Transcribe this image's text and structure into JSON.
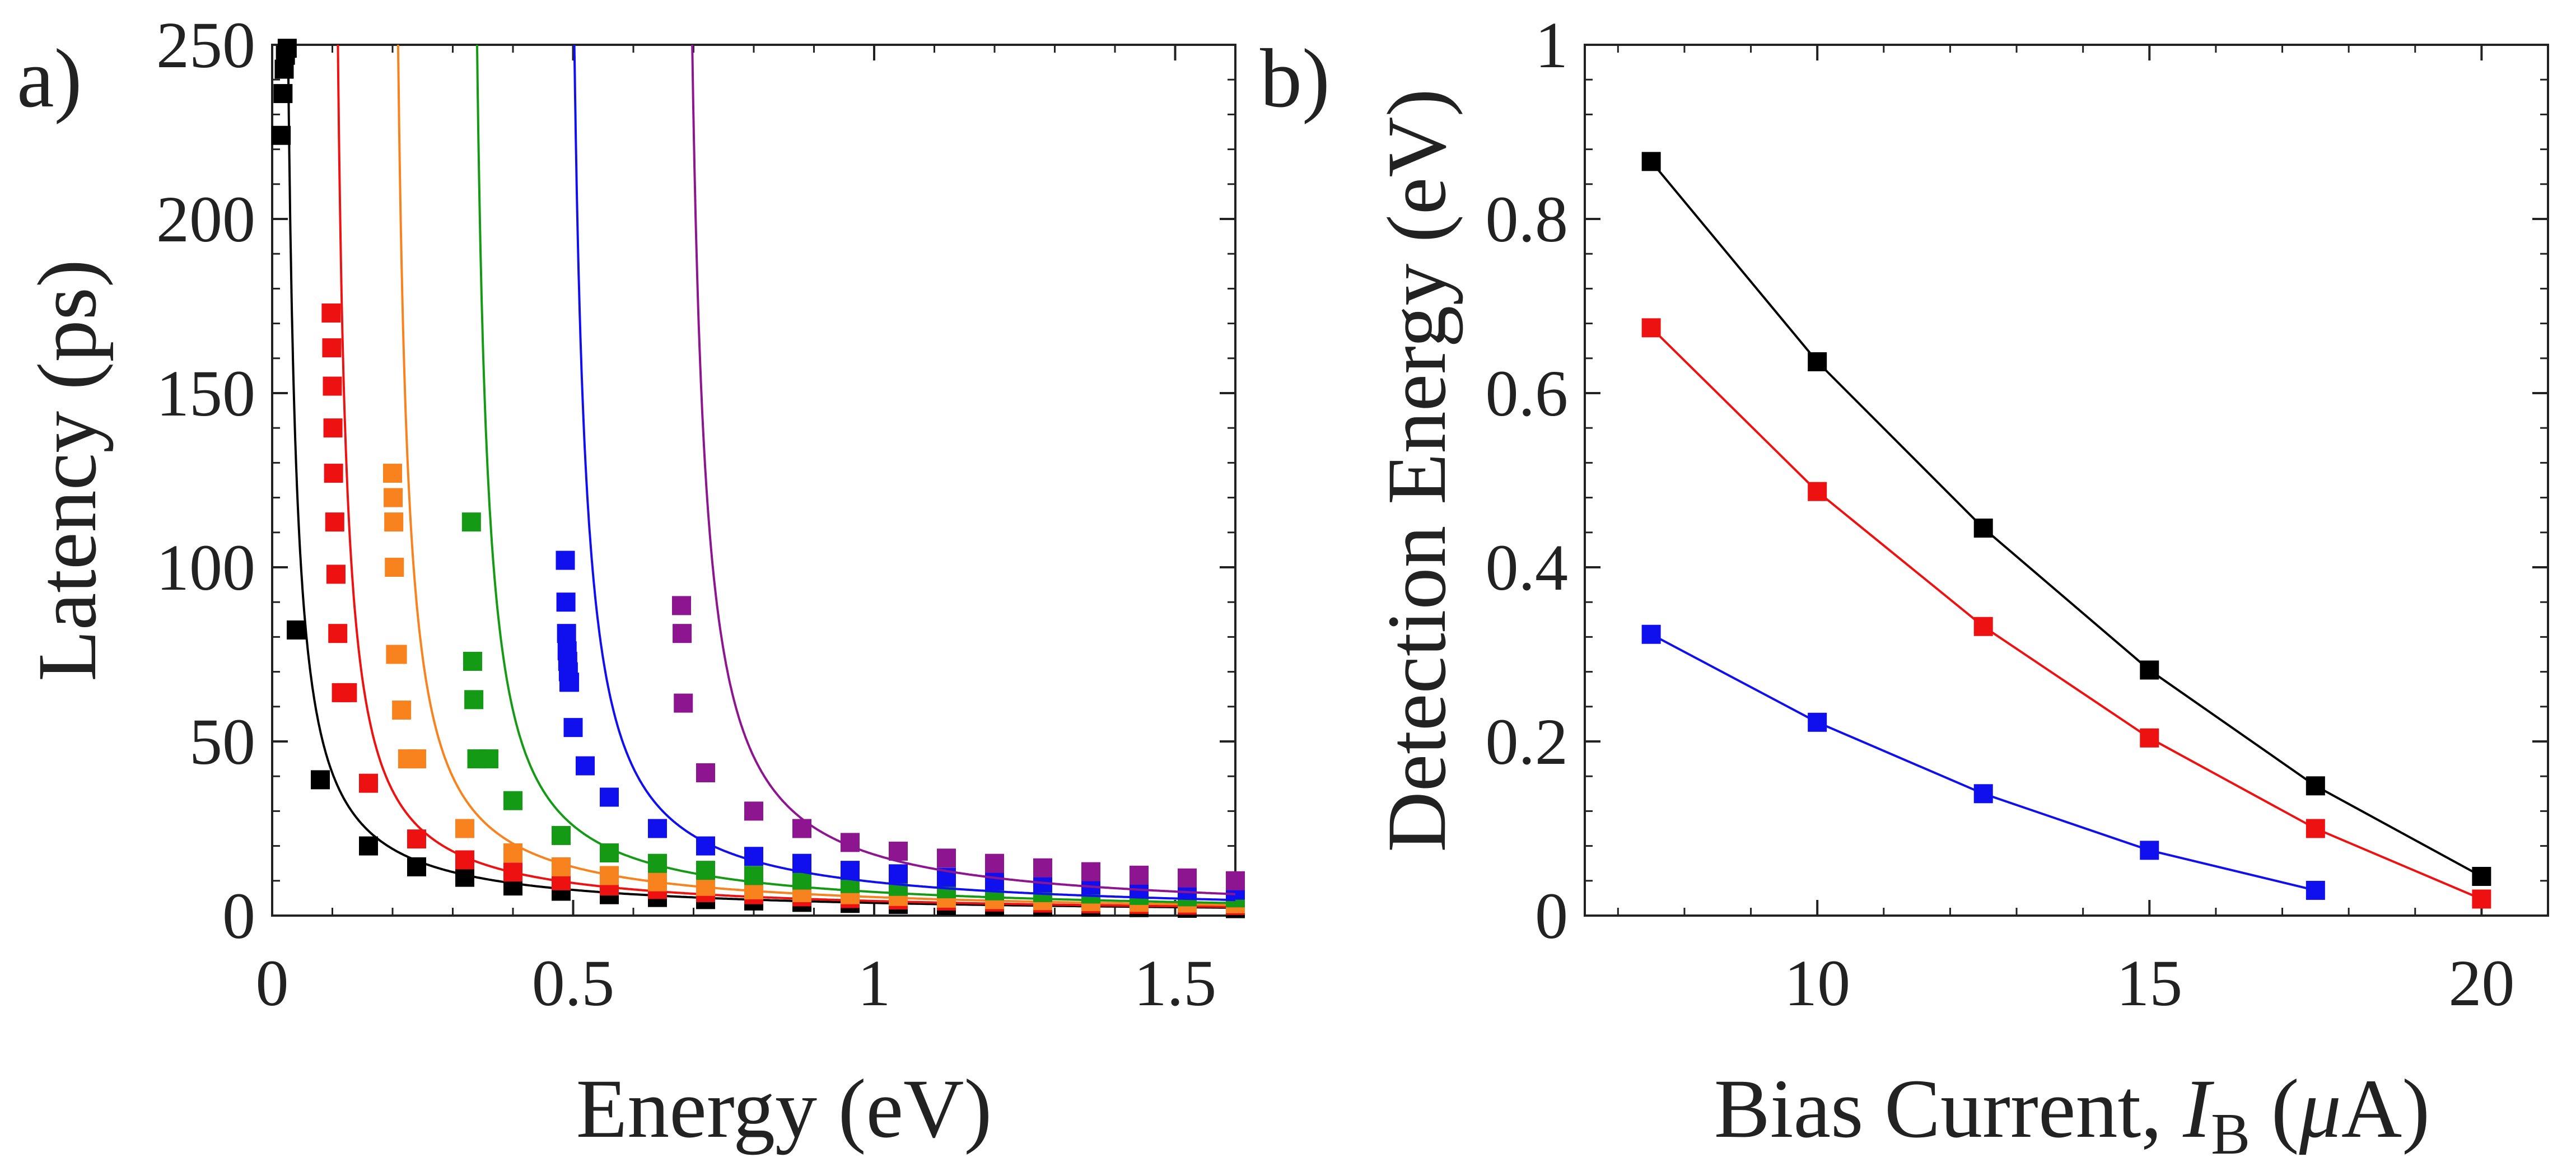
{
  "chart_data": [
    {
      "type": "scatter",
      "panel_label": "a)",
      "xlabel": "Energy (eV)",
      "ylabel": "Latency (ps)",
      "xlim": [
        0,
        1.6
      ],
      "ylim": [
        0,
        250
      ],
      "xticks": [
        0,
        0.5,
        1,
        1.5
      ],
      "xtick_labels": [
        "0",
        "0.5",
        "1",
        "1.5"
      ],
      "yticks": [
        0,
        50,
        100,
        150,
        200,
        250
      ],
      "ytick_labels": [
        "0",
        "50",
        "100",
        "150",
        "200",
        "250"
      ],
      "series": [
        {
          "name": "black",
          "color": "#000000",
          "fit": {
            "e0": 0.012,
            "k": 3.6
          },
          "x": [
            0.015,
            0.018,
            0.02,
            0.022,
            0.025,
            0.04,
            0.08,
            0.16,
            0.24,
            0.32,
            0.4,
            0.48,
            0.56,
            0.64,
            0.72,
            0.8,
            0.88,
            0.96,
            1.04,
            1.12,
            1.2,
            1.28,
            1.36,
            1.44,
            1.52,
            1.6
          ],
          "y": [
            224,
            236,
            243,
            247,
            249,
            82,
            39,
            20,
            14,
            11,
            8.5,
            7,
            6,
            5.2,
            4.6,
            4.2,
            3.8,
            3.5,
            3.2,
            2.9,
            2.7,
            2.5,
            2.4,
            2.3,
            2.1,
            2.0
          ]
        },
        {
          "name": "red",
          "color": "#ee1111",
          "fit": {
            "e0": 0.094,
            "k": 3.8
          },
          "x": [
            0.098,
            0.099,
            0.1,
            0.101,
            0.102,
            0.104,
            0.106,
            0.109,
            0.115,
            0.125,
            0.16,
            0.24,
            0.32,
            0.4,
            0.48,
            0.56,
            0.64,
            0.72,
            0.8,
            0.88,
            0.96,
            1.04,
            1.12,
            1.2,
            1.28,
            1.36,
            1.44,
            1.52,
            1.6
          ],
          "y": [
            173,
            163,
            152,
            140,
            127,
            113,
            98,
            81,
            64,
            64,
            38,
            22,
            16,
            12.5,
            10,
            8.5,
            7.5,
            6.6,
            6,
            5.4,
            4.9,
            4.5,
            4.2,
            3.9,
            3.6,
            3.4,
            3.2,
            3.0,
            2.9
          ]
        },
        {
          "name": "orange",
          "color": "#f7821e",
          "fit": {
            "e0": 0.192,
            "k": 4.3
          },
          "x": [
            0.2,
            0.201,
            0.202,
            0.203,
            0.205,
            0.208,
            0.215,
            0.225,
            0.24,
            0.32,
            0.4,
            0.48,
            0.56,
            0.64,
            0.72,
            0.8,
            0.88,
            0.96,
            1.04,
            1.12,
            1.2,
            1.28,
            1.36,
            1.44,
            1.52,
            1.6
          ],
          "y": [
            127,
            120,
            113,
            100,
            75,
            75,
            59,
            45,
            45,
            25,
            18,
            14,
            11.5,
            9.7,
            8.4,
            7.4,
            6.6,
            6,
            5.5,
            5.0,
            4.6,
            4.3,
            4.0,
            3.8,
            3.6,
            3.4
          ]
        },
        {
          "name": "green",
          "color": "#159a15",
          "fit": {
            "e0": 0.322,
            "k": 4.6
          },
          "x": [
            0.331,
            0.333,
            0.335,
            0.34,
            0.36,
            0.4,
            0.48,
            0.56,
            0.64,
            0.72,
            0.8,
            0.88,
            0.96,
            1.04,
            1.12,
            1.2,
            1.28,
            1.36,
            1.44,
            1.52,
            1.6
          ],
          "y": [
            113,
            73,
            62,
            45,
            45,
            33,
            23,
            18,
            15,
            13,
            11.5,
            10.2,
            9.2,
            8.4,
            7.7,
            7.1,
            6.6,
            6.2,
            5.8,
            5.4,
            5.1
          ]
        },
        {
          "name": "blue",
          "color": "#1010ee",
          "fit": {
            "e0": 0.482,
            "k": 5.0
          },
          "x": [
            0.487,
            0.488,
            0.489,
            0.49,
            0.491,
            0.492,
            0.493,
            0.494,
            0.5,
            0.52,
            0.56,
            0.64,
            0.72,
            0.8,
            0.88,
            0.96,
            1.04,
            1.12,
            1.2,
            1.28,
            1.36,
            1.44,
            1.52,
            1.6
          ],
          "y": [
            102,
            90,
            81,
            76,
            73,
            70,
            67,
            67,
            54,
            43,
            34,
            25,
            20,
            17,
            15,
            13,
            12,
            11,
            10,
            9.4,
            8.8,
            8.2,
            7.7,
            7.3
          ]
        },
        {
          "name": "purple",
          "color": "#8e1590",
          "fit": {
            "e0": 0.675,
            "k": 5.7
          },
          "x": [
            0.68,
            0.681,
            0.683,
            0.72,
            0.8,
            0.88,
            0.96,
            1.04,
            1.12,
            1.2,
            1.28,
            1.36,
            1.44,
            1.52,
            1.6
          ],
          "y": [
            89,
            81,
            61,
            41,
            30,
            25,
            21,
            18.5,
            16.5,
            15,
            13.7,
            12.6,
            11.6,
            10.8,
            10
          ]
        }
      ]
    },
    {
      "type": "line",
      "panel_label": "b)",
      "xlabel": "Bias Current, ",
      "xlabel_symbol": "I",
      "xlabel_subscript": "B",
      "xlabel_unit_open": " (",
      "xlabel_unit_symbol": "μ",
      "xlabel_unit_close": "A)",
      "ylabel": "Detection Energy (eV)",
      "xlim": [
        6.5,
        21
      ],
      "ylim": [
        0,
        1
      ],
      "xticks": [
        10,
        15,
        20
      ],
      "xtick_labels": [
        "10",
        "15",
        "20"
      ],
      "yticks": [
        0,
        0.2,
        0.4,
        0.6,
        0.8,
        1
      ],
      "ytick_labels": [
        "0",
        "0.2",
        "0.4",
        "0.6",
        "0.8",
        "1"
      ],
      "series": [
        {
          "name": "black",
          "color": "#000000",
          "x": [
            7.5,
            10,
            12.5,
            15,
            17.5,
            20
          ],
          "y": [
            0.866,
            0.636,
            0.445,
            0.282,
            0.149,
            0.045
          ]
        },
        {
          "name": "red",
          "color": "#ee1111",
          "x": [
            7.5,
            10,
            12.5,
            15,
            17.5,
            20
          ],
          "y": [
            0.675,
            0.487,
            0.332,
            0.204,
            0.1,
            0.019
          ]
        },
        {
          "name": "blue",
          "color": "#1010ee",
          "x": [
            7.5,
            10,
            12.5,
            15,
            17.5
          ],
          "y": [
            0.323,
            0.222,
            0.14,
            0.075,
            0.029
          ]
        }
      ]
    }
  ]
}
